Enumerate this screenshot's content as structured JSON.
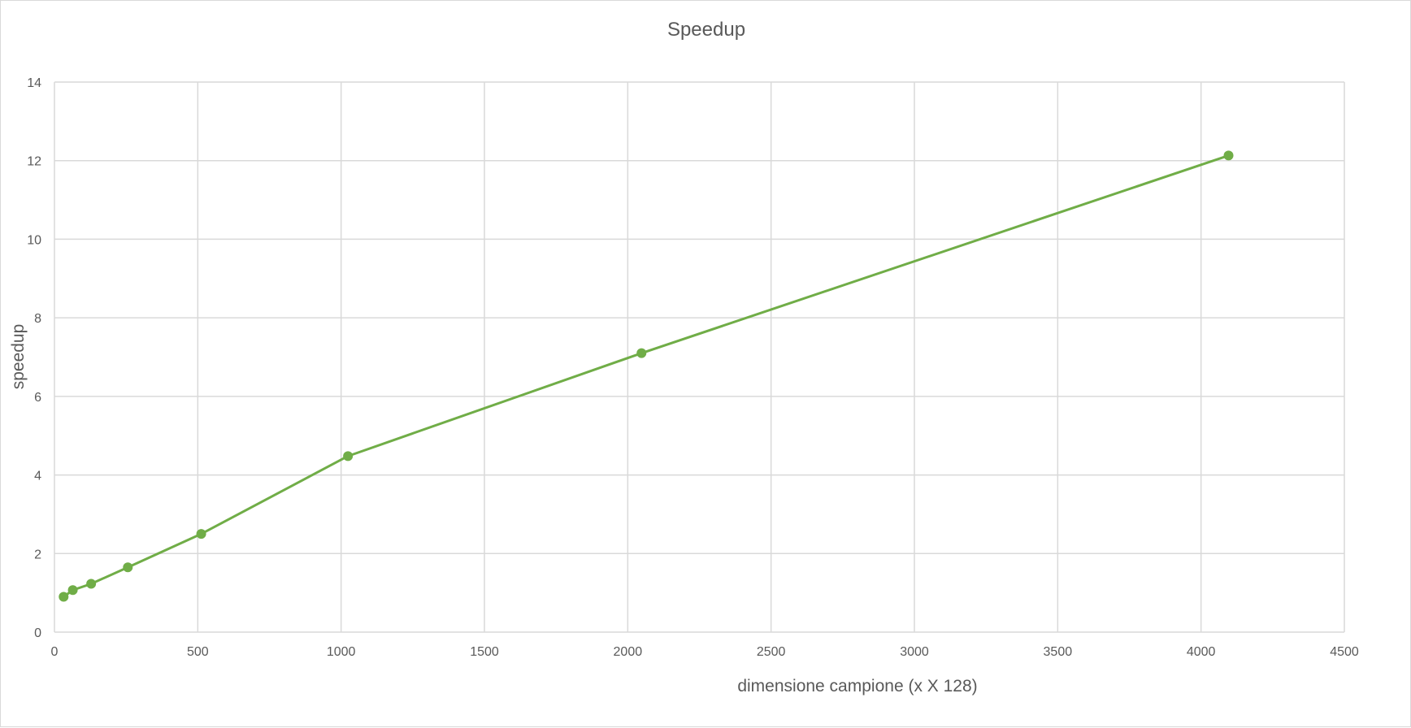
{
  "chart_data": {
    "type": "line",
    "title": "Speedup",
    "xlabel": "dimensione campione (x X 128)",
    "ylabel": "speedup",
    "xlim": [
      0,
      4500
    ],
    "ylim": [
      0,
      14
    ],
    "x_ticks": [
      0,
      500,
      1000,
      1500,
      2000,
      2500,
      3000,
      3500,
      4000,
      4500
    ],
    "y_ticks": [
      0,
      2,
      4,
      6,
      8,
      10,
      12,
      14
    ],
    "x_tick_labels": [
      "0",
      "500",
      "1000",
      "1500",
      "2000",
      "2500",
      "3000",
      "3500",
      "4000",
      "4500"
    ],
    "y_tick_labels": [
      "0",
      "2",
      "4",
      "6",
      "8",
      "10",
      "12",
      "14"
    ],
    "grid": "both",
    "legend": "none",
    "series": [
      {
        "color": "#70ad47",
        "marker": "circle",
        "x": [
          32,
          64,
          128,
          256,
          512,
          1024,
          2048,
          4096
        ],
        "y": [
          0.9,
          1.07,
          1.23,
          1.65,
          2.5,
          4.48,
          7.1,
          12.13
        ]
      }
    ]
  }
}
